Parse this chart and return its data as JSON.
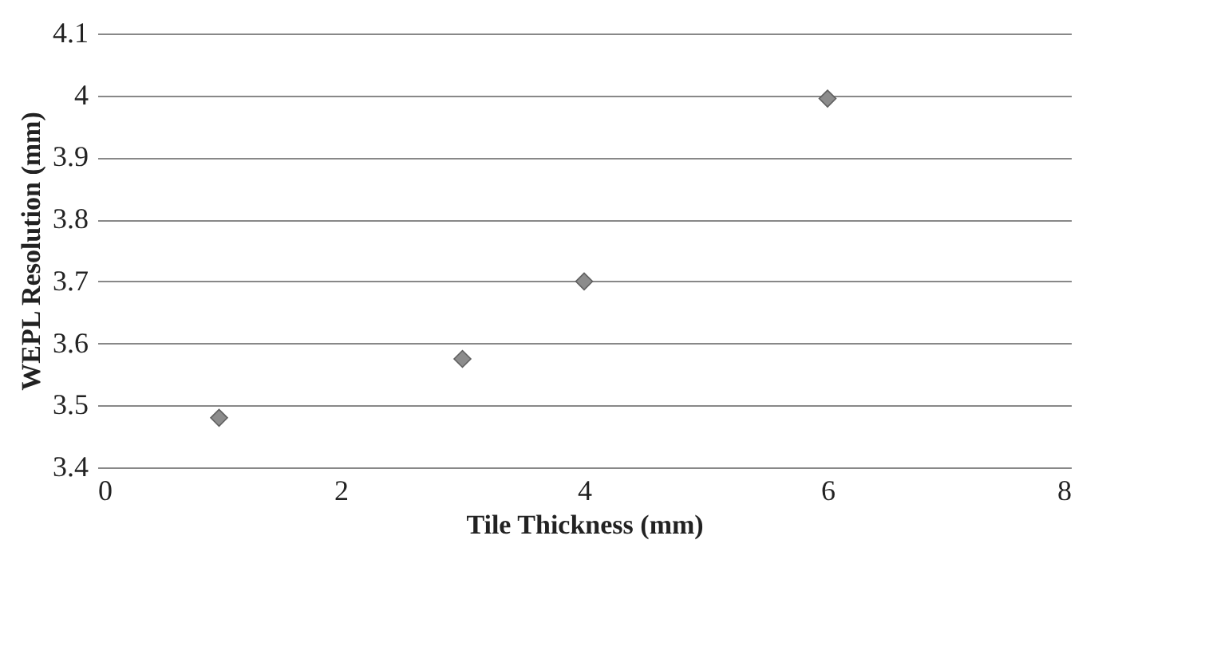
{
  "chart_data": {
    "type": "scatter",
    "xlabel": "Tile Thickness (mm)",
    "ylabel": "WEPL Resolution (mm)",
    "x": [
      1,
      3,
      4,
      6
    ],
    "series": [
      {
        "color": "#8c8c8c",
        "values": [
          3.48,
          3.575,
          3.7,
          3.995
        ]
      }
    ],
    "xlim": [
      0,
      8
    ],
    "xticks": [
      0,
      2,
      4,
      6,
      8
    ],
    "ylim": [
      3.4,
      4.1
    ],
    "yticks": [
      3.4,
      3.5,
      3.6,
      3.7,
      3.8,
      3.9,
      4,
      4.1
    ],
    "grid": "y",
    "marker": "diamond",
    "legend": false
  }
}
